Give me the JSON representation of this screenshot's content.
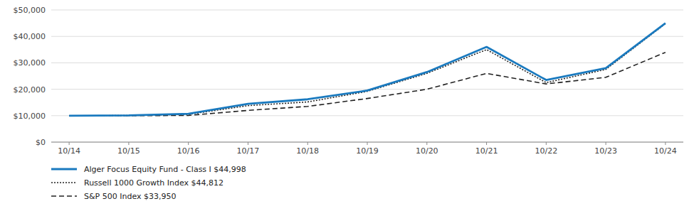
{
  "chart_data": {
    "type": "line",
    "categories": [
      "10/14",
      "10/15",
      "10/16",
      "10/17",
      "10/18",
      "10/19",
      "10/20",
      "10/21",
      "10/22",
      "10/23",
      "10/24"
    ],
    "series": [
      {
        "name": "Alger Focus Equity Fund - Class I $44,998",
        "color": "#1a7abf",
        "line_style": "solid",
        "values": [
          10000,
          10100,
          10700,
          14500,
          16200,
          19500,
          26500,
          36000,
          23500,
          28000,
          44998
        ]
      },
      {
        "name": "Russell 1000 Growth Index $44,812",
        "color": "#222222",
        "line_style": "dotted",
        "values": [
          10000,
          10050,
          10500,
          13800,
          15200,
          19200,
          26000,
          35000,
          22500,
          27500,
          44812
        ]
      },
      {
        "name": "S&P 500 Index $33,950",
        "color": "#222222",
        "line_style": "dashed",
        "values": [
          10000,
          10000,
          10100,
          12000,
          13500,
          16500,
          20000,
          26000,
          22000,
          24500,
          33950
        ]
      }
    ],
    "ylim": [
      0,
      50000
    ],
    "yticks": [
      {
        "value": 0,
        "label": "$0"
      },
      {
        "value": 10000,
        "label": "$10,000"
      },
      {
        "value": 20000,
        "label": "$20,000"
      },
      {
        "value": 30000,
        "label": "$30,000"
      },
      {
        "value": 40000,
        "label": "$40,000"
      },
      {
        "value": 50000,
        "label": "$50,000"
      }
    ],
    "grid": true,
    "legend": "bottom"
  }
}
